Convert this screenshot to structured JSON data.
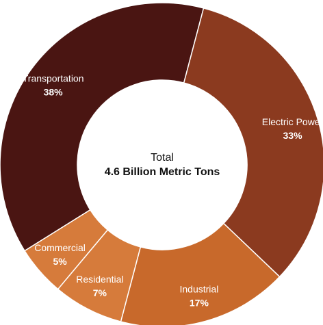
{
  "chart_data": {
    "type": "pie",
    "donut": true,
    "center": {
      "label": "Total",
      "value": "4.6 Billion Metric Tons"
    },
    "slices": [
      {
        "name": "Transportation",
        "value": 38,
        "label": "38%",
        "color": "#4a1512"
      },
      {
        "name": "Electric Power",
        "value": 33,
        "label": "33%",
        "color": "#8b3a1f"
      },
      {
        "name": "Industrial",
        "value": 17,
        "label": "17%",
        "color": "#c8692b"
      },
      {
        "name": "Residential",
        "value": 7,
        "label": "7%",
        "color": "#d67b3b"
      },
      {
        "name": "Commercial",
        "value": 5,
        "label": "5%",
        "color": "#d67b3b"
      }
    ],
    "slice_border_color": "#ffffff"
  }
}
